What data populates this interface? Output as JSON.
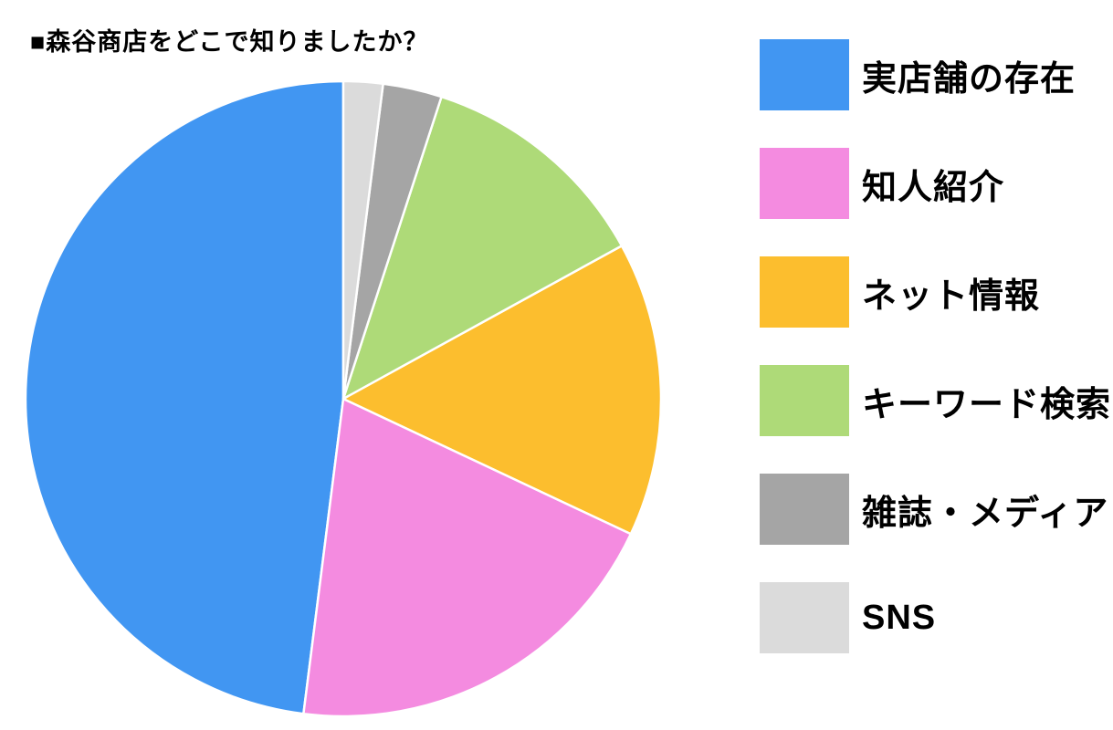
{
  "title": "■森谷商店をどこで知りましたか？",
  "chart_data": {
    "type": "pie",
    "title": "森谷商店をどこで知りましたか？",
    "start_angle": "12-oclock",
    "direction": "counterclockwise",
    "legend_position": "right",
    "grid": false,
    "data_labels_shown": false,
    "slice_border_color": "#ffffff",
    "slices": [
      {
        "label": "実店舗の存在",
        "value_pct": 48,
        "color": "#4196f2"
      },
      {
        "label": "知人紹介",
        "value_pct": 20,
        "color": "#f48be0"
      },
      {
        "label": "ネット情報",
        "value_pct": 15,
        "color": "#fcbe2e"
      },
      {
        "label": "キーワード検索",
        "value_pct": 12,
        "color": "#aeda78"
      },
      {
        "label": "雑誌・メディア",
        "value_pct": 3,
        "color": "#a5a5a5"
      },
      {
        "label": "SNS",
        "value_pct": 2,
        "color": "#dbdbdb"
      }
    ]
  }
}
